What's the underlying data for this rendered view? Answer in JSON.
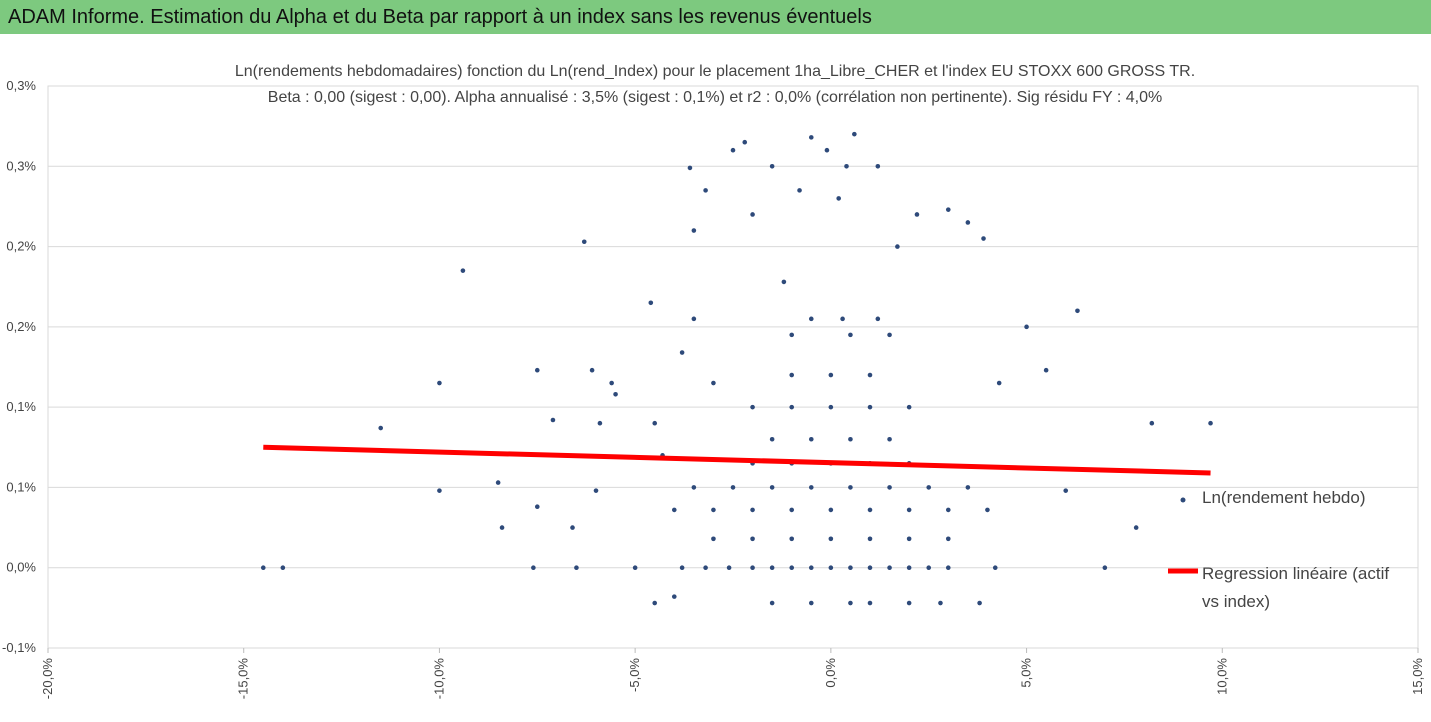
{
  "header": {
    "title": "ADAM Informe. Estimation du Alpha et du Beta par rapport à un index sans les revenus éventuels"
  },
  "chart_data": {
    "type": "scatter",
    "title": "Ln(rendements hebdomadaires) fonction du Ln(rend_Index) pour le placement 1ha_Libre_CHER et l'index EU STOXX 600 GROSS TR.",
    "subtitle": "Beta : 0,00 (sigest : 0,00). Alpha annualisé : 3,5% (sigest : 0,1%) et r2 : 0,0% (corrélation non pertinente). Sig résidu FY : 4,0%",
    "xlim": [
      -20,
      15
    ],
    "xticks": [
      {
        "value": -20,
        "label": "-20,0%"
      },
      {
        "value": -15,
        "label": "-15,0%"
      },
      {
        "value": -10,
        "label": "-10,0%"
      },
      {
        "value": -5,
        "label": "-5,0%"
      },
      {
        "value": 0,
        "label": "0,0%"
      },
      {
        "value": 5,
        "label": "5,0%"
      },
      {
        "value": 10,
        "label": "10,0%"
      },
      {
        "value": 15,
        "label": "15,0%"
      }
    ],
    "ylim": [
      -0.05,
      0.3
    ],
    "yticks": [
      {
        "value": -0.05,
        "label": "-0,1%"
      },
      {
        "value": 0,
        "label": "0,0%"
      },
      {
        "value": 0.05,
        "label": "0,1%"
      },
      {
        "value": 0.1,
        "label": "0,1%"
      },
      {
        "value": 0.15,
        "label": "0,2%"
      },
      {
        "value": 0.2,
        "label": "0,2%"
      },
      {
        "value": 0.25,
        "label": "0,3%"
      },
      {
        "value": 0.3,
        "label": "0,3%"
      }
    ],
    "grid": true,
    "series": [
      {
        "name": "Ln(rendement hebdo)",
        "color": "#2e4a7a",
        "mode": "points",
        "x": [
          -14.5,
          -14,
          -11.5,
          -10,
          -10,
          -9.4,
          -8.5,
          -8.4,
          -7.5,
          -7.5,
          -7.6,
          -7.1,
          -6.6,
          -6.5,
          -6.3,
          -6.1,
          -6,
          -5.9,
          -5.6,
          -5.5,
          -5,
          -4.6,
          -4.5,
          -4.5,
          -4.3,
          -4,
          -3.8,
          -3.6,
          -3.5,
          -3.5,
          -3.2,
          -3,
          -2.5,
          -2.2,
          -2,
          -1.5,
          -1.2,
          -0.8,
          -0.5,
          -0.1,
          0.2,
          0.4,
          0.6,
          1.2,
          1.7,
          2.2,
          3,
          3.5,
          3.9,
          4.3,
          5,
          5.5,
          6,
          6.3,
          7,
          7.8,
          8.2,
          9.7,
          4.2,
          3.8,
          2.8,
          2,
          -3.8,
          -3.2,
          -2.6,
          -2,
          -1.5,
          -1,
          -0.5,
          0,
          0.5,
          1,
          1.5,
          2,
          2.5,
          3,
          -3,
          -2,
          -1,
          0,
          1,
          2,
          3,
          -4,
          -3,
          -2,
          -1,
          0,
          1,
          2,
          3,
          4,
          -3.5,
          -2.5,
          -1.5,
          -0.5,
          0.5,
          1.5,
          2.5,
          3.5,
          -2,
          -1,
          0,
          1,
          2,
          -1.5,
          -0.5,
          0.5,
          1.5,
          -2,
          -1,
          0,
          1,
          2,
          -1,
          0,
          1,
          -1,
          0.5,
          1.5,
          -0.5,
          0.3,
          1.2,
          -1.5,
          -0.5,
          0.5,
          1
        ],
        "values": [
          0,
          0,
          0.087,
          0.115,
          0.048,
          0.185,
          0.053,
          0.025,
          0.123,
          0.038,
          0,
          0.092,
          0.025,
          0,
          0.203,
          0.123,
          0.048,
          0.09,
          0.115,
          0.108,
          0,
          0.165,
          -0.022,
          0.09,
          0.07,
          -0.018,
          0.134,
          0.249,
          0.21,
          0.155,
          0.235,
          0.115,
          0.26,
          0.265,
          0.22,
          0.25,
          0.178,
          0.235,
          0.268,
          0.26,
          0.23,
          0.25,
          0.27,
          0.25,
          0.2,
          0.22,
          0.223,
          0.215,
          0.205,
          0.115,
          0.15,
          0.123,
          0.048,
          0.16,
          0,
          0.025,
          0.09,
          0.09,
          0,
          -0.022,
          -0.022,
          -0.022,
          0,
          0,
          0,
          0,
          0,
          0,
          0,
          0,
          0,
          0,
          0,
          0,
          0,
          0,
          0.018,
          0.018,
          0.018,
          0.018,
          0.018,
          0.018,
          0.018,
          0.036,
          0.036,
          0.036,
          0.036,
          0.036,
          0.036,
          0.036,
          0.036,
          0.036,
          0.05,
          0.05,
          0.05,
          0.05,
          0.05,
          0.05,
          0.05,
          0.05,
          0.065,
          0.065,
          0.065,
          0.065,
          0.065,
          0.08,
          0.08,
          0.08,
          0.08,
          0.1,
          0.1,
          0.1,
          0.1,
          0.1,
          0.12,
          0.12,
          0.12,
          0.145,
          0.145,
          0.145,
          0.155,
          0.155,
          0.155,
          -0.022,
          -0.022,
          -0.022,
          -0.022
        ]
      },
      {
        "name": "Regression linéaire (actif vs index)",
        "color": "#ff0000",
        "mode": "line",
        "x": [
          -14.5,
          9.7
        ],
        "values": [
          0.075,
          0.059
        ]
      }
    ]
  }
}
